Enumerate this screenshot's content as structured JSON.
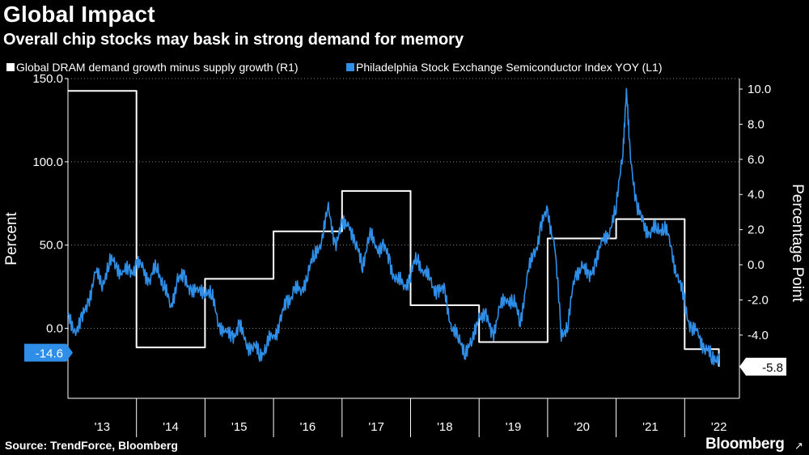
{
  "header": {
    "title": "Global Impact",
    "subtitle": "Overall chip stocks may bask in strong demand for memory"
  },
  "footer": {
    "source": "Source: TrendForce, Bloomberg",
    "brand": "Bloomberg",
    "brand_mark": "↗"
  },
  "chart_data": {
    "type": "line",
    "title": "Global Impact",
    "subtitle": "Overall chip stocks may bask in strong demand for memory",
    "x_tick_labels": [
      "'13",
      "'14",
      "'15",
      "'16",
      "'17",
      "'18",
      "'19",
      "'20",
      "'21",
      "'22"
    ],
    "x_range": [
      2013.0,
      2022.75
    ],
    "left_axis": {
      "label": "Percent",
      "range": [
        -42,
        150
      ],
      "ticks": [
        0.0,
        50.0,
        100.0,
        150.0
      ],
      "tick_labels": [
        "0.0",
        "50.0",
        "100.0",
        "150.0"
      ]
    },
    "right_axis": {
      "label": "Percentage Point",
      "range": [
        -7.6,
        10.6
      ],
      "ticks": [
        -4.0,
        -2.0,
        0.0,
        2.0,
        4.0,
        6.0,
        8.0,
        10.0
      ],
      "tick_labels": [
        "-4.0",
        "-2.0",
        "0.0",
        "2.0",
        "4.0",
        "6.0",
        "8.0",
        "10.0"
      ]
    },
    "last_value_labels": {
      "left": "-14.6",
      "right": "-5.8"
    },
    "series": [
      {
        "name": "Global DRAM demand growth minus supply growth (R1)",
        "axis": "right",
        "color": "#ffffff",
        "step": true,
        "x": [
          2013.0,
          2014.0,
          2014.0,
          2015.0,
          2015.0,
          2016.0,
          2016.0,
          2017.0,
          2017.0,
          2018.0,
          2018.0,
          2019.0,
          2019.0,
          2020.0,
          2020.0,
          2021.0,
          2021.0,
          2022.0,
          2022.0,
          2022.5,
          2022.5
        ],
        "values": [
          9.9,
          9.9,
          -4.7,
          -4.7,
          -0.8,
          -0.8,
          1.9,
          1.9,
          4.2,
          4.2,
          -2.3,
          -2.3,
          -4.4,
          -4.4,
          1.5,
          1.5,
          2.6,
          2.6,
          -4.8,
          -4.8,
          -5.8
        ]
      },
      {
        "name": "Philadelphia Stock Exchange Semiconductor Index YOY (L1)",
        "axis": "left",
        "color": "#2f8fe8",
        "step": false,
        "x": [
          2013.0,
          2013.1,
          2013.2,
          2013.3,
          2013.4,
          2013.5,
          2013.6,
          2013.7,
          2013.8,
          2013.9,
          2014.0,
          2014.1,
          2014.2,
          2014.3,
          2014.4,
          2014.5,
          2014.6,
          2014.7,
          2014.8,
          2014.9,
          2015.0,
          2015.1,
          2015.2,
          2015.3,
          2015.4,
          2015.5,
          2015.6,
          2015.7,
          2015.8,
          2015.9,
          2016.0,
          2016.1,
          2016.2,
          2016.3,
          2016.4,
          2016.5,
          2016.6,
          2016.7,
          2016.8,
          2016.9,
          2017.0,
          2017.1,
          2017.2,
          2017.3,
          2017.4,
          2017.5,
          2017.6,
          2017.7,
          2017.8,
          2017.9,
          2018.0,
          2018.1,
          2018.2,
          2018.3,
          2018.4,
          2018.5,
          2018.6,
          2018.7,
          2018.8,
          2018.9,
          2019.0,
          2019.1,
          2019.2,
          2019.3,
          2019.4,
          2019.5,
          2019.6,
          2019.7,
          2019.8,
          2019.9,
          2020.0,
          2020.1,
          2020.2,
          2020.3,
          2020.4,
          2020.5,
          2020.6,
          2020.7,
          2020.8,
          2020.9,
          2021.0,
          2021.1,
          2021.15,
          2021.2,
          2021.3,
          2021.4,
          2021.5,
          2021.6,
          2021.7,
          2021.8,
          2021.9,
          2022.0,
          2022.1,
          2022.2,
          2022.3,
          2022.4,
          2022.5
        ],
        "values": [
          5,
          0,
          3,
          18,
          32,
          28,
          38,
          40,
          32,
          35,
          38,
          35,
          30,
          36,
          28,
          10,
          32,
          28,
          25,
          20,
          25,
          18,
          5,
          -5,
          -3,
          0,
          -8,
          -12,
          -15,
          -10,
          -5,
          5,
          15,
          25,
          20,
          35,
          42,
          55,
          70,
          52,
          60,
          65,
          48,
          40,
          55,
          50,
          48,
          40,
          28,
          26,
          32,
          42,
          35,
          26,
          24,
          20,
          2,
          -8,
          -12,
          -10,
          10,
          5,
          -2,
          10,
          20,
          15,
          5,
          30,
          45,
          60,
          70,
          52,
          -5,
          5,
          30,
          40,
          28,
          42,
          50,
          60,
          70,
          110,
          140,
          110,
          70,
          65,
          55,
          62,
          60,
          50,
          30,
          15,
          0,
          -5,
          -10,
          -20,
          -15
        ]
      }
    ]
  }
}
